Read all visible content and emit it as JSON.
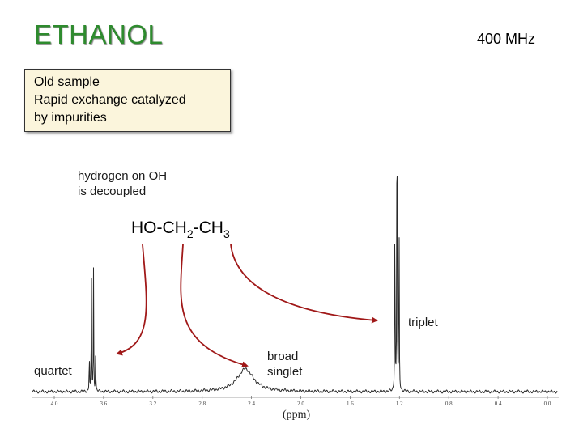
{
  "slide": {
    "title": "ETHANOL",
    "frequency": "400 MHz",
    "note_lines": [
      "Old sample",
      "Rapid exchange catalyzed",
      "by impurities"
    ],
    "decoupled_note": [
      "hydrogen on OH",
      "is decoupled"
    ],
    "formula": {
      "p1": "HO-CH",
      "s1": "2",
      "p2": "-CH",
      "s2": "3"
    },
    "peak_labels": {
      "quartet": "quartet",
      "broad": [
        "broad",
        "singlet"
      ],
      "triplet": "triplet"
    },
    "arrow_color": "#a01818",
    "title_color": "#2e8b2e"
  },
  "chart_data": {
    "type": "line",
    "title": "ETHANOL",
    "xlabel": "(ppm)",
    "ylabel": "",
    "xlim": [
      4.2,
      -0.1
    ],
    "x_reversed": true,
    "ticks": [
      "4.0",
      "3.6",
      "3.2",
      "2.8",
      "2.4",
      "2.0",
      "1.6",
      "1.2",
      "0.8",
      "0.4",
      "0.0"
    ],
    "tick_values": [
      4.0,
      3.6,
      3.2,
      2.8,
      2.4,
      2.0,
      1.6,
      1.2,
      0.8,
      0.4,
      0.0
    ],
    "grid": false,
    "peaks": [
      {
        "label": "quartet",
        "multiplicity": "quartet",
        "center_ppm": 3.69,
        "spacing_ppm": 0.017,
        "heights": [
          0.1,
          0.32,
          0.33,
          0.11
        ]
      },
      {
        "label": "broad singlet",
        "multiplicity": "singlet",
        "center_ppm": 2.45,
        "width_ppm": 0.08,
        "heights": [
          0.06
        ]
      },
      {
        "label": "triplet",
        "multiplicity": "triplet",
        "center_ppm": 1.22,
        "spacing_ppm": 0.017,
        "heights": [
          0.52,
          1.0,
          0.52
        ]
      }
    ]
  }
}
